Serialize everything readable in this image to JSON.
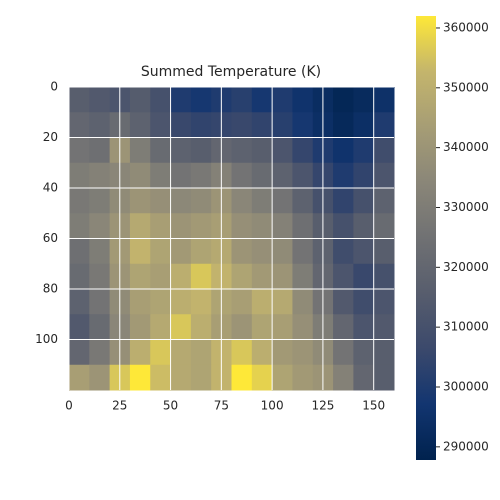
{
  "chart_data": {
    "type": "heatmap",
    "title": "Summed Temperature (K)",
    "colormap": "cividis",
    "xlim": [
      0,
      160
    ],
    "ylim": [
      0,
      120
    ],
    "y_inverted": true,
    "xticks": [
      0,
      25,
      50,
      75,
      100,
      125,
      150
    ],
    "yticks": [
      0,
      20,
      40,
      60,
      80,
      100
    ],
    "grid": true,
    "clim": [
      287800,
      362000
    ],
    "cticks": [
      290000,
      300000,
      310000,
      320000,
      330000,
      340000,
      350000,
      360000
    ],
    "values": [
      [
        316000,
        314000,
        312000,
        315000,
        310000,
        300000,
        298000,
        300000,
        302000,
        298000,
        300000,
        296000,
        293000,
        290000,
        292000,
        295000
      ],
      [
        320000,
        318000,
        322000,
        318000,
        312000,
        306000,
        304000,
        305000,
        306000,
        304000,
        302000,
        298000,
        294000,
        291000,
        294000,
        300000
      ],
      [
        326000,
        324000,
        340000,
        330000,
        322000,
        318000,
        316000,
        320000,
        318000,
        316000,
        312000,
        305000,
        300000,
        296000,
        300000,
        308000
      ],
      [
        330000,
        332000,
        334000,
        336000,
        330000,
        326000,
        328000,
        332000,
        326000,
        322000,
        318000,
        312000,
        305000,
        300000,
        304000,
        312000
      ],
      [
        328000,
        330000,
        336000,
        340000,
        338000,
        335000,
        336000,
        340000,
        334000,
        330000,
        326000,
        318000,
        310000,
        304000,
        310000,
        318000
      ],
      [
        330000,
        334000,
        340000,
        348000,
        344000,
        340000,
        342000,
        344000,
        338000,
        336000,
        332000,
        324000,
        316000,
        310000,
        316000,
        322000
      ],
      [
        324000,
        330000,
        342000,
        352000,
        346000,
        342000,
        346000,
        348000,
        340000,
        338000,
        336000,
        326000,
        318000,
        308000,
        312000,
        316000
      ],
      [
        322000,
        328000,
        340000,
        346000,
        344000,
        350000,
        356000,
        352000,
        346000,
        342000,
        340000,
        330000,
        320000,
        312000,
        306000,
        310000
      ],
      [
        318000,
        326000,
        336000,
        344000,
        346000,
        350000,
        352000,
        346000,
        344000,
        350000,
        348000,
        336000,
        326000,
        314000,
        308000,
        312000
      ],
      [
        314000,
        322000,
        334000,
        342000,
        348000,
        356000,
        350000,
        344000,
        340000,
        346000,
        344000,
        338000,
        330000,
        320000,
        312000,
        314000
      ],
      [
        320000,
        328000,
        338000,
        350000,
        356000,
        348000,
        346000,
        352000,
        356000,
        350000,
        342000,
        340000,
        336000,
        326000,
        318000,
        316000
      ],
      [
        344000,
        340000,
        356000,
        362000,
        354000,
        348000,
        346000,
        352000,
        362000,
        358000,
        346000,
        342000,
        340000,
        332000,
        320000,
        316000
      ]
    ]
  }
}
